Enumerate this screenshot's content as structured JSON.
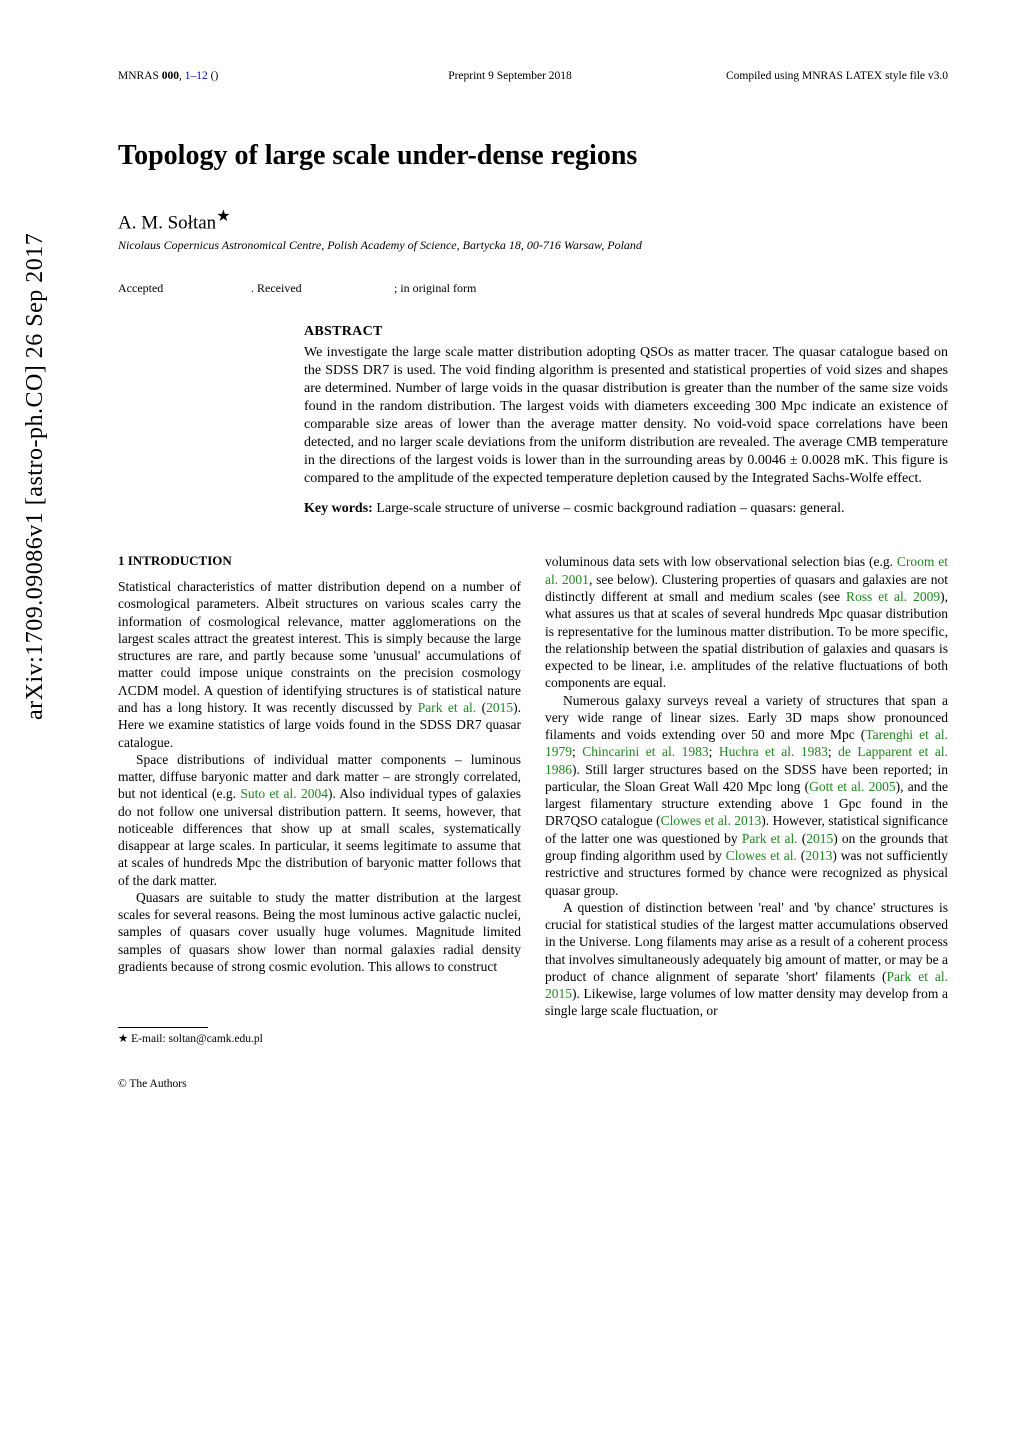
{
  "arxiv_stamp": "arXiv:1709.09086v1  [astro-ph.CO]  26 Sep 2017",
  "journal": {
    "left_prefix": "MNRAS ",
    "volume": "000",
    "pages": "1–12",
    "year": " ()",
    "center": "Preprint 9 September 2018",
    "right": "Compiled using MNRAS LATEX style file v3.0"
  },
  "title": "Topology of large scale under-dense regions",
  "author": "A. M. Sołtan",
  "author_star": "★",
  "affiliation": "Nicolaus Copernicus Astronomical Centre, Polish Academy of Science, Bartycka 18, 00-716 Warsaw, Poland",
  "dates": {
    "accepted": "Accepted",
    "received": ". Received",
    "inorig": "; in original form"
  },
  "abstract_heading": "ABSTRACT",
  "abstract_text": "We investigate the large scale matter distribution adopting QSOs as matter tracer. The quasar catalogue based on the SDSS DR7 is used. The void finding algorithm is presented and statistical properties of void sizes and shapes are determined. Number of large voids in the quasar distribution is greater than the number of the same size voids found in the random distribution. The largest voids with diameters exceeding 300 Mpc indicate an existence of comparable size areas of lower than the average matter density. No void-void space correlations have been detected, and no larger scale deviations from the uniform distribution are revealed. The average CMB temperature in the directions of the largest voids is lower than in the surrounding areas by 0.0046 ± 0.0028 mK. This figure is compared to the amplitude of the expected temperature depletion caused by the Integrated Sachs-Wolfe effect.",
  "keywords_label": "Key words:",
  "keywords_text": " Large-scale structure of universe – cosmic background radiation – quasars: general.",
  "section_heading": "1   INTRODUCTION",
  "left_paras": [
    "Statistical characteristics of matter distribution depend on a number of cosmological parameters. Albeit structures on various scales carry the information of cosmological relevance, matter agglomerations on the largest scales attract the greatest interest. This is simply because the large structures are rare, and partly because some 'unusual' accumulations of matter could impose unique constraints on the precision cosmology ΛCDM model. A question of identifying structures is of statistical nature and has a long history. It was recently discussed by |Park et al.| (|2015|). Here we examine statistics of large voids found in the SDSS DR7 quasar catalogue.",
    "Space distributions of individual matter components – luminous matter, diffuse baryonic matter and dark matter – are strongly correlated, but not identical (e.g. |Suto et al. 2004|). Also individual types of galaxies do not follow one universal distribution pattern. It seems, however, that noticeable differences that show up at small scales, systematically disappear at large scales. In particular, it seems legitimate to assume that at scales of hundreds Mpc the distribution of baryonic matter follows that of the dark matter.",
    "Quasars are suitable to study the matter distribution at the largest scales for several reasons. Being the most luminous active galactic nuclei, samples of quasars cover usually huge volumes. Magnitude limited samples of quasars show lower than normal galaxies radial density gradients because of strong cosmic evolution. This allows to construct"
  ],
  "right_paras": [
    "voluminous data sets with low observational selection bias (e.g. |Croom et al. 2001|, see below). Clustering properties of quasars and galaxies are not distinctly different at small and medium scales (see |Ross et al. 2009|), what assures us that at scales of several hundreds Mpc quasar distribution is representative for the luminous matter distribution. To be more specific, the relationship between the spatial distribution of galaxies and quasars is expected to be linear, i.e. amplitudes of the relative fluctuations of both components are equal.",
    "Numerous galaxy surveys reveal a variety of structures that span a very wide range of linear sizes. Early 3D maps show pronounced filaments and voids extending over 50 and more Mpc (|Tarenghi et al. 1979|; |Chincarini et al. 1983|; |Huchra et al. 1983|; |de Lapparent et al. 1986|). Still larger structures based on the SDSS have been reported; in particular, the Sloan Great Wall 420 Mpc long (|Gott et al. 2005|), and the largest filamentary structure extending above 1 Gpc found in the DR7QSO catalogue (|Clowes et al. 2013|). However, statistical significance of the latter one was questioned by |Park et al.| (|2015|) on the grounds that group finding algorithm used by |Clowes et al.| (|2013|) was not sufficiently restrictive and structures formed by chance were recognized as physical quasar group.",
    "A question of distinction between 'real' and 'by chance' structures is crucial for statistical studies of the largest matter accumulations observed in the Universe. Long filaments may arise as a result of a coherent process that involves simultaneously adequately big amount of matter, or may be a product of chance alignment of separate 'short' filaments (|Park et al. 2015|). Likewise, large volumes of low matter density may develop from a single large scale fluctuation, or"
  ],
  "footnote": "★ E-mail: soltan@camk.edu.pl",
  "copyright": "© The Authors",
  "colors": {
    "link_blue": "#0000d0",
    "cite_green": "#1a8a1a"
  }
}
